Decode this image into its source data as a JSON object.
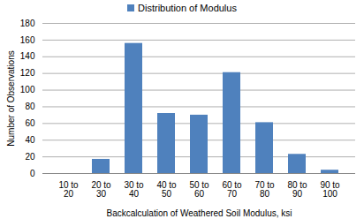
{
  "chart_data": {
    "type": "bar",
    "series": [
      {
        "name": "Distribution of Modulus",
        "color": "#4f81bd",
        "values": [
          0,
          17,
          156,
          72,
          70,
          121,
          61,
          23,
          4
        ]
      }
    ],
    "categories": [
      "10 to 20",
      "20 to 30",
      "30 to 40",
      "40 to 50",
      "50 to 60",
      "60 to 70",
      "70 to 80",
      "80 to 90",
      "90 to 100"
    ],
    "x_label": "Backcalculation of Weathered Soil Modulus, ksi",
    "y_label": "Number of Observations",
    "ylim": [
      0,
      180
    ],
    "yticks": [
      0,
      20,
      40,
      60,
      80,
      100,
      120,
      140,
      160,
      180
    ],
    "grid": true,
    "legend": "top"
  }
}
